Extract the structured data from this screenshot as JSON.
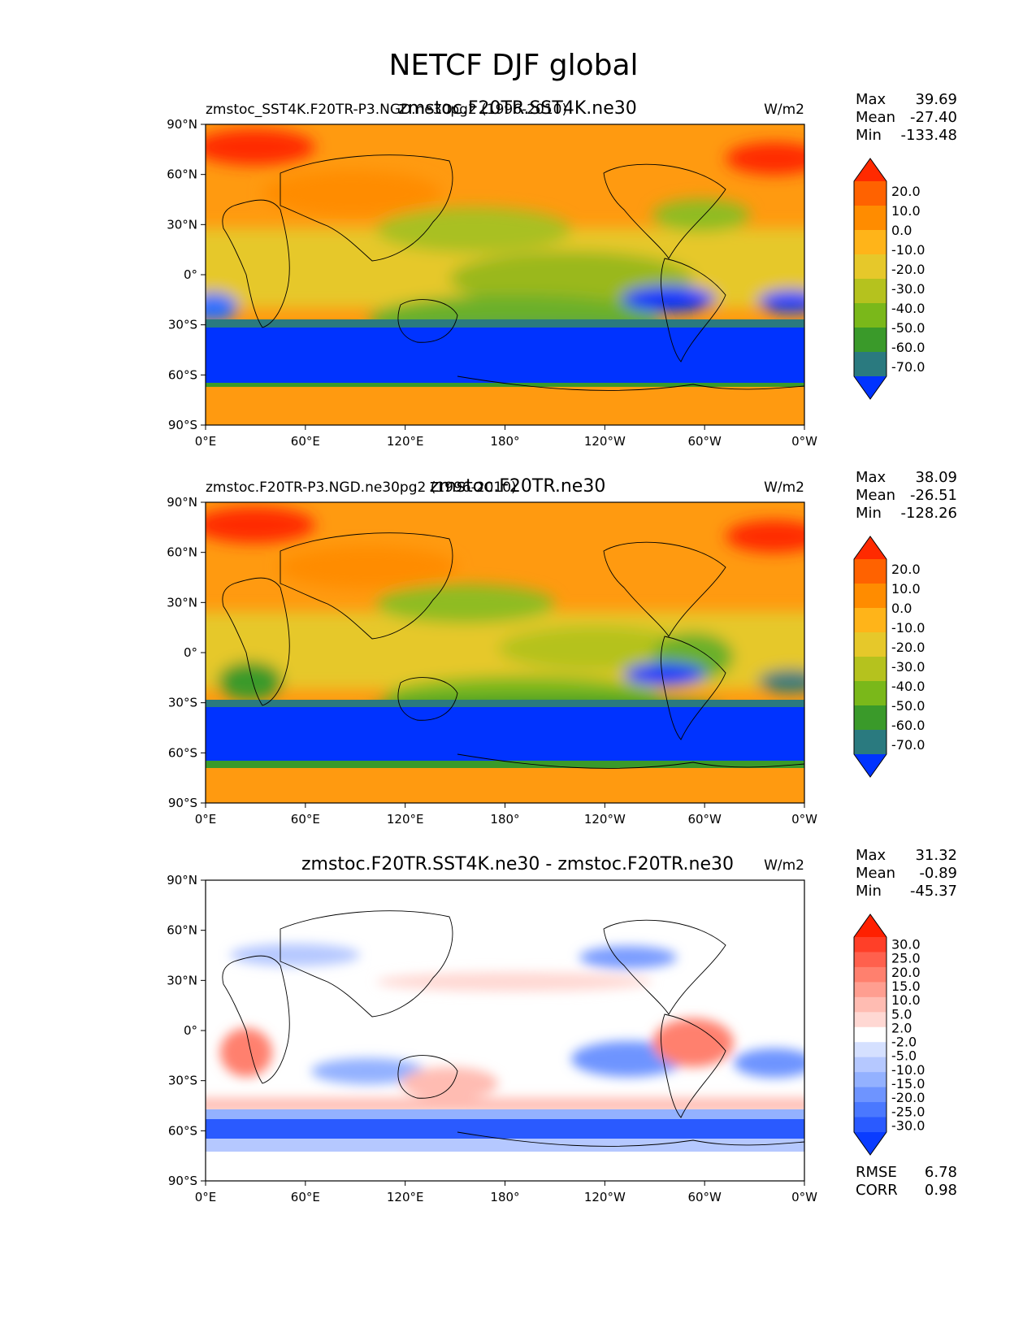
{
  "suptitle": "NETCF DJF global",
  "xticks": [
    "0°E",
    "60°E",
    "120°E",
    "180°",
    "120°W",
    "60°W",
    "0°W"
  ],
  "yticks": [
    "90°N",
    "60°N",
    "30°N",
    "0°",
    "30°S",
    "60°S",
    "90°S"
  ],
  "colors": {
    "model_levels": [
      "#0033ff",
      "#2a7a7f",
      "#3a9a2a",
      "#7ab81a",
      "#b5c21e",
      "#e6c82a",
      "#ffb419",
      "#ff8c00",
      "#ff6200",
      "#ff2a00"
    ],
    "diff_levels": [
      "#0a3cff",
      "#2a5aff",
      "#4a78ff",
      "#6e94ff",
      "#93b1ff",
      "#b5c8ff",
      "#d5e0ff",
      "#ffffff",
      "#ffd8d3",
      "#ffbcb2",
      "#ff9e90",
      "#ff806e",
      "#ff604d",
      "#ff3f28",
      "#ff2000"
    ],
    "map_orange": "#ff9a10",
    "ocean_blue": "#0033ff"
  },
  "panels": [
    {
      "id": "test",
      "title": "zmstoc.F20TR.SST4K.ne30",
      "left_title": "zmstoc_SST4K.F20TR-P3.NGD.ne30pg2 (1996-2010)",
      "units": "W/m2",
      "stats": {
        "max_label": "Max",
        "max": "39.69",
        "mean_label": "Mean",
        "mean": "-27.40",
        "min_label": "Min",
        "min": "-133.48"
      },
      "colorbar_labels": [
        "20.0",
        "10.0",
        "0.0",
        "-10.0",
        "-20.0",
        "-30.0",
        "-40.0",
        "-50.0",
        "-60.0",
        "-70.0"
      ]
    },
    {
      "id": "ref",
      "title": "zmstoc.F20TR.ne30",
      "left_title": "zmstoc.F20TR-P3.NGD.ne30pg2 (1996-2010)",
      "units": "W/m2",
      "stats": {
        "max_label": "Max",
        "max": "38.09",
        "mean_label": "Mean",
        "mean": "-26.51",
        "min_label": "Min",
        "min": "-128.26"
      },
      "colorbar_labels": [
        "20.0",
        "10.0",
        "0.0",
        "-10.0",
        "-20.0",
        "-30.0",
        "-40.0",
        "-50.0",
        "-60.0",
        "-70.0"
      ]
    },
    {
      "id": "diff",
      "title": "zmstoc.F20TR.SST4K.ne30 - zmstoc.F20TR.ne30",
      "left_title": "",
      "units": "W/m2",
      "stats": {
        "max_label": "Max",
        "max": "31.32",
        "mean_label": "Mean",
        "mean": "-0.89",
        "min_label": "Min",
        "min": "-45.37"
      },
      "colorbar_labels": [
        "30.0",
        "25.0",
        "20.0",
        "15.0",
        "10.0",
        "5.0",
        "2.0",
        "-2.0",
        "-5.0",
        "-10.0",
        "-15.0",
        "-20.0",
        "-25.0",
        "-30.0"
      ],
      "rmse_label": "RMSE",
      "rmse": "6.78",
      "corr_label": "CORR",
      "corr": "0.98"
    }
  ],
  "chart_data": [
    {
      "type": "heatmap",
      "title": "zmstoc.F20TR.SST4K.ne30",
      "xlabel": "",
      "ylabel": "",
      "x_ticks": [
        "0°E",
        "60°E",
        "120°E",
        "180°",
        "120°W",
        "60°W",
        "0°W"
      ],
      "y_ticks": [
        "90°N",
        "60°N",
        "30°N",
        "0°",
        "30°S",
        "60°S",
        "90°S"
      ],
      "xlim": [
        0,
        360
      ],
      "ylim": [
        -90,
        90
      ],
      "levels": [
        -70,
        -60,
        -50,
        -40,
        -30,
        -20,
        -10,
        0,
        10,
        20
      ],
      "stats": {
        "max": 39.69,
        "mean": -27.4,
        "min": -133.48
      },
      "units": "W/m2"
    },
    {
      "type": "heatmap",
      "title": "zmstoc.F20TR.ne30",
      "xlabel": "",
      "ylabel": "",
      "x_ticks": [
        "0°E",
        "60°E",
        "120°E",
        "180°",
        "120°W",
        "60°W",
        "0°W"
      ],
      "y_ticks": [
        "90°N",
        "60°N",
        "30°N",
        "0°",
        "30°S",
        "60°S",
        "90°S"
      ],
      "xlim": [
        0,
        360
      ],
      "ylim": [
        -90,
        90
      ],
      "levels": [
        -70,
        -60,
        -50,
        -40,
        -30,
        -20,
        -10,
        0,
        10,
        20
      ],
      "stats": {
        "max": 38.09,
        "mean": -26.51,
        "min": -128.26
      },
      "units": "W/m2"
    },
    {
      "type": "heatmap",
      "title": "zmstoc.F20TR.SST4K.ne30 - zmstoc.F20TR.ne30",
      "xlabel": "",
      "ylabel": "",
      "x_ticks": [
        "0°E",
        "60°E",
        "120°E",
        "180°",
        "120°W",
        "60°W",
        "0°W"
      ],
      "y_ticks": [
        "90°N",
        "60°N",
        "30°N",
        "0°",
        "30°S",
        "60°S",
        "90°S"
      ],
      "xlim": [
        0,
        360
      ],
      "ylim": [
        -90,
        90
      ],
      "levels": [
        -30,
        -25,
        -20,
        -15,
        -10,
        -5,
        -2,
        2,
        5,
        10,
        15,
        20,
        25,
        30
      ],
      "stats": {
        "max": 31.32,
        "mean": -0.89,
        "min": -45.37,
        "rmse": 6.78,
        "corr": 0.98
      },
      "units": "W/m2"
    }
  ]
}
